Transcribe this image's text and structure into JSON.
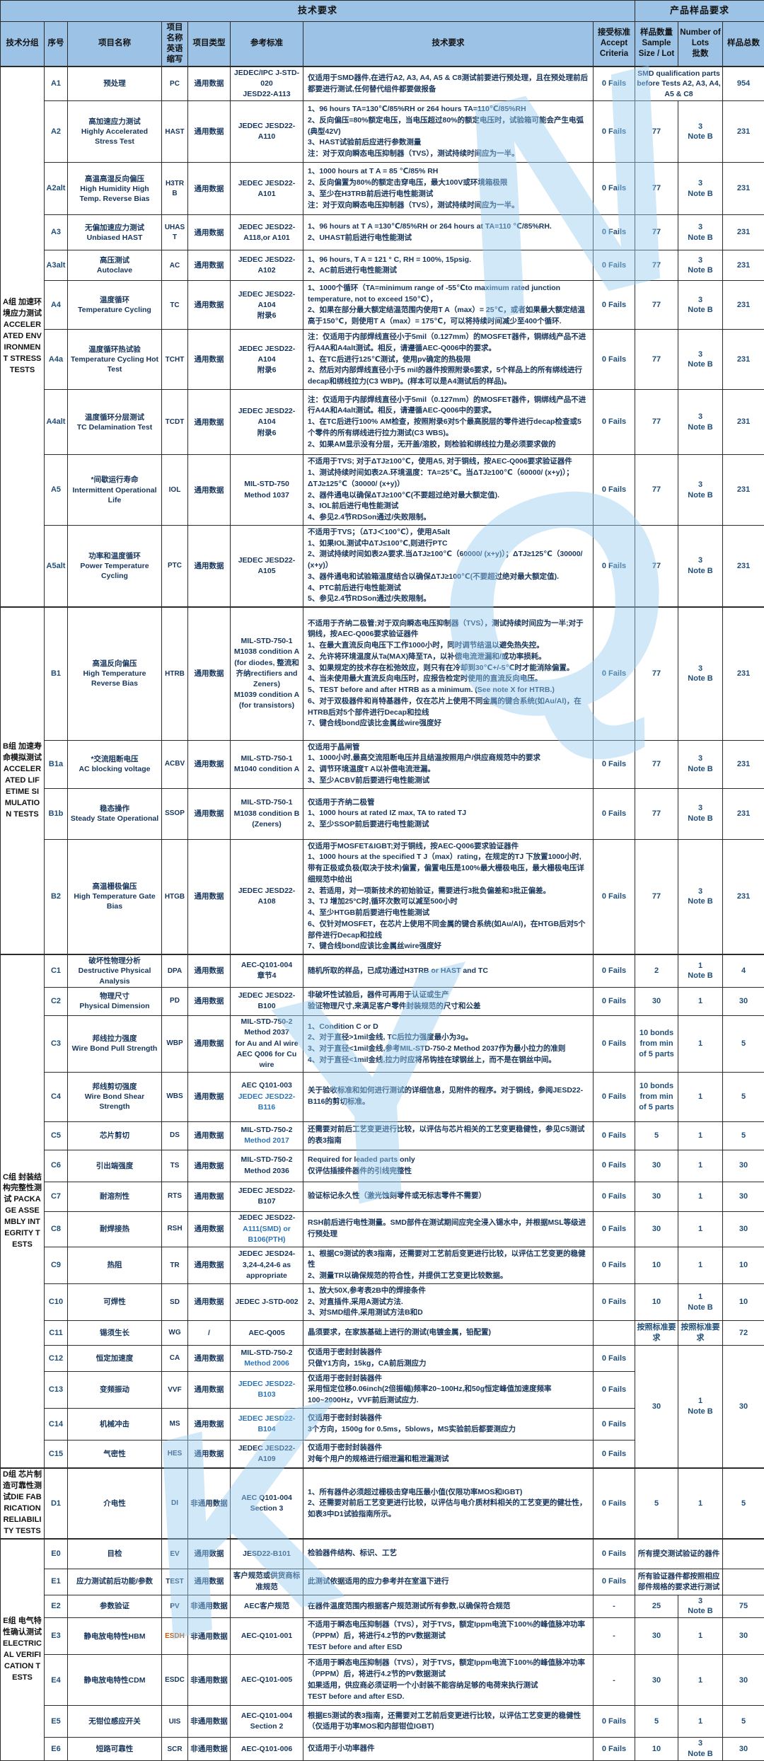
{
  "title_bar": {
    "tech_requirements": "技术要求",
    "product_sample_requirements": "产品样品要求"
  },
  "columns": [
    "技术分组",
    "序号",
    "项目名称",
    "项目名称英语缩写",
    "项目类型",
    "参考标准",
    "技术要求",
    "接受标准\nAccept\nCriteria",
    "样品数量\nSample\nSize / Lot",
    "Number of\nLots\n批数",
    "样品总数"
  ],
  "colors": {
    "header_bg": "#9CC3E6",
    "text": "#17365D",
    "number": "#1F4E79",
    "link_blue": "#2E75B6",
    "abbr_orange": "#C45911",
    "watermark": "#96CDF0"
  },
  "groups": [
    {
      "id": "A",
      "label": "A组 加速环境应力测试 ACCELERATED ENVIRONMENT STRESS TESTS",
      "rows": 10
    },
    {
      "id": "B",
      "label": "B组 加速寿命模拟测试 ACCELERATED LIFETIME SIMULATION TESTS",
      "rows": 4
    },
    {
      "id": "C",
      "label": "C组 封装结构完整性测试 PACKAGE ASSEMBLY INTEGRITY TESTS",
      "rows": 15
    },
    {
      "id": "D",
      "label": "D组 芯片制造可靠性测试DIE FABRICATION RELIABILITY TESTS",
      "rows": 1
    },
    {
      "id": "E",
      "label": "E组 电气特性确认测试 ELECTRICAL VERIFICATION TESTS",
      "rows": 7
    }
  ],
  "rows": [
    {
      "id": "A1",
      "name_zh": "预处理",
      "name_en": "",
      "abbr": "PC",
      "type": "通用数据",
      "ref": [
        {
          "t": "JEDEC/IPC J-STD-020"
        },
        {
          "t": "JESD22-A113"
        }
      ],
      "tech": [
        "仅适用于SMD器件,在进行A2, A3, A4, A5 & C8测试前要进行预处理，且在预处理前后都要进行测试,任何替代组件都要做报备"
      ],
      "accept": "0 Fails",
      "sample_wide": "SMD qualification parts before Tests A2, A3, A4, A5 & C8",
      "total": "954"
    },
    {
      "id": "A2",
      "name_zh": "高加速应力测试",
      "name_en": "Highly Accelerated Stress Test",
      "abbr": "HAST",
      "type": "通用数据",
      "ref": [
        {
          "t": "JEDEC JESD22-A110"
        }
      ],
      "tech": [
        "1、96  hours TA=130℃/85%RH or 264 hours TA=110℃/85%RH",
        "2、反向偏压=80%额定电压，当电压超过80%的额定电压时，试验箱可能会产生电弧(典型42V)",
        "3、HAST试验前后应进行参数测量",
        "注：对于双向瞬态电压抑制器（TVS），测试持续时间应为一半。"
      ],
      "accept": "0 Fails",
      "sample": "77",
      "lots": "3\nNote B",
      "total": "231"
    },
    {
      "id": "A2alt",
      "name_zh": "高温高湿反向偏压",
      "name_en": "High Humidity High Temp. Reverse Bias",
      "abbr": "H3TRB",
      "type": "通用数据",
      "ref": [
        {
          "t": "JEDEC JESD22-A101"
        }
      ],
      "tech": [
        "1、1000 hours at T A = 85 ℃/85% RH",
        "2、反向偏置为80%的额定击穿电压，最大100V或环境箱极限",
        "3、至少在H3TRB前后进行电性能测试",
        "注：对于双向瞬态电压抑制器（TVS），测试持续时间应为一半。"
      ],
      "accept": "0 Fails",
      "sample": "77",
      "lots": "3\nNote B",
      "total": "231"
    },
    {
      "id": "A3",
      "name_zh": "无偏加速应力测试",
      "name_en": "Unbiased HAST",
      "abbr": "UHAST",
      "type": "通用数据",
      "ref": [
        {
          "t": "JEDEC JESD22-A118,or A101"
        }
      ],
      "tech": [
        "1、96 hours at T A =130℃/85%RH or 264 hours at TA=110 ℃/85%RH.",
        "2、UHAST前后进行电性能测试"
      ],
      "accept": "0 Fails",
      "sample": "77",
      "lots": "3\nNote B",
      "total": "231"
    },
    {
      "id": "A3alt",
      "name_zh": "高压测试",
      "name_en": "Autoclave",
      "abbr": "AC",
      "type": "通用数据",
      "ref": [
        {
          "t": "JEDEC JESD22-A102"
        }
      ],
      "tech": [
        "1、96 hours, T A = 121 ° C, RH = 100%, 15psig.",
        "2、AC前后进行电性能测试"
      ],
      "accept": "0 Fails",
      "sample": "77",
      "lots": "3\nNote B",
      "total": "231"
    },
    {
      "id": "A4",
      "name_zh": "温度循环",
      "name_en": "Temperature Cycling",
      "abbr": "TC",
      "type": "通用数据",
      "ref": [
        {
          "t": "JEDEC JESD22-A104"
        },
        {
          "t": "附录6"
        }
      ],
      "tech": [
        "1、1000个循环（TA=minimum range of -55℃to maximum rated junction temperature, not to exceed 150℃），",
        "2、如果在部分最大额定结温范围内使用T A（max）= 25℃，或者如果最大额定结温高于150℃，则使用T A（max）= 175℃，可以将持续时间减少至400个循环."
      ],
      "accept": "0 Fails",
      "sample": "77",
      "lots": "3\nNote B",
      "total": "231"
    },
    {
      "id": "A4a",
      "name_zh": "温度循环热试验",
      "name_en": "Temperature Cycling Hot Test",
      "abbr": "TCHT",
      "type": "通用数据",
      "ref": [
        {
          "t": "JEDEC JESD22-A104"
        },
        {
          "t": "附录6"
        }
      ],
      "tech": [
        "注：仅适用于内部焊线直径小于5mil（0.127mm）的MOSFET器件，铜绑线产品不进行A4A和A4alt测试。相反，请遵循AEC-Q006中的要求。",
        "1、在TC后进行125℃测试，使用pv确定的热极限",
        "2、然后对内部焊线直径小于5 mil的器件按照附录6要求，5个样品上的所有绑线进行decap和绑线拉力(C3 WBP)。(样本可以是A4测试后的样品)。"
      ],
      "accept": "0 Fails",
      "sample": "77",
      "lots": "3\nNote B",
      "total": "231"
    },
    {
      "id": "A4alt",
      "name_zh": "温度循环分层测试",
      "name_en": "TC Delamination Test",
      "abbr": "TCDT",
      "type": "通用数据",
      "ref": [
        {
          "t": "JEDEC JESD22-A104"
        },
        {
          "t": "附录6"
        }
      ],
      "tech": [
        "注：仅适用于内部焊线直径小于5mil（0.127mm）的MOSFET器件，铜绑线产品不进行A4A和A4alt测试。相反，请遵循AEC-Q006中的要求。",
        "1、在TC后进行100% AM检查，按照附录6对5个最高脱层的零件进行decap检查或5个零件的所有绑线进行拉力测试(C3 WBS)。",
        "2、如果AM显示没有分层，无开盖/溶胶，则检验和绑线拉力是必须要求做的"
      ],
      "accept": "0 Fails",
      "sample": "77",
      "lots": "3\nNote B",
      "total": "231"
    },
    {
      "id": "A5",
      "name_zh": "*间歇运行寿命",
      "name_en": "Intermittent Operational Life",
      "abbr": "IOL",
      "type": "通用数据",
      "ref": [
        {
          "t": "MIL-STD-750"
        },
        {
          "t": "Method 1037"
        }
      ],
      "tech": [
        "不适用于TVS; 对于ΔTJ≥100℃，使用A5, 对于铜线，按AEC-Q006要求验证器件",
        "1、测试持续时间如表2A.环境温度：TA=25℃。当ΔTJ≥100℃（60000/ (x+y)）；ΔTJ≥125℃（30000/ (x+y)）",
        "2、器件通电以确保ΔTJ≥100℃(不要超过绝对最大额定值).",
        "3、IOL前后进行电性能测试",
        "4、参见2.4节RDSon通过/失败限制。"
      ],
      "accept": "0 Fails",
      "sample": "77",
      "lots": "3\nNote B",
      "total": "231"
    },
    {
      "id": "A5alt",
      "name_zh": "功率和温度循环",
      "name_en": "Power Temperature Cycling",
      "abbr": "PTC",
      "type": "通用数据",
      "ref": [
        {
          "t": "JEDEC JESD22-A105"
        }
      ],
      "tech": [
        "不适用于TVS；（ΔTJ＜100℃），使用A5alt",
        "1、如果IOL测试中ΔTJ≤100℃,则进行PTC",
        "2、测试持续时间如表2A要求.当ΔTJ≥100℃（60000/ (x+y)）；ΔTJ≥125℃（30000/ (x+y)）",
        "3、器件通电和试验箱温度结合以确保ΔTJ≥100℃(不要超过绝对最大额定值).",
        "4、PTC前后进行电性能测试",
        "5、参见2.4节RDSon通过/失败限制。"
      ],
      "accept": "0 Fails",
      "sample": "77",
      "lots": "3\nNote B",
      "total": "231"
    },
    {
      "id": "B1",
      "name_zh": "高温反向偏压",
      "name_en": "High Temperature Reverse Bias",
      "abbr": "HTRB",
      "type": "通用数据",
      "ref": [
        {
          "t": "MIL-STD-750-1"
        },
        {
          "t": "M1038 condition A"
        },
        {
          "t": "(for diodes, 整流和齐纳rectifiers and Zeners)"
        },
        {
          "t": "M1039 condition A"
        },
        {
          "t": "(for transistors)"
        }
      ],
      "tech": [
        "不适用于齐纳二极管;对于双向瞬态电压抑制器（TVS），测试持续时间应为一半;对于铜线，按AEC-Q006要求验证器件",
        "1、在最大直流反向电压下工作1000小时，同时调节结温以避免热失控。",
        "2、允许将环境温度从Ta(MAX)降至TA，以补偿电流泄漏和/或功率损耗。",
        "3、如果规定的技术存在松弛效应，则只有在冷却到30℃+/-5℃时才能消除偏置。",
        "4、当未使用最大直流反向电压时，应报告检定时使用的直流反向电压。",
        "5、TEST before and after HTRB as a minimum. (See note X for HTRB.)",
        "6、对于双极器件和肖特基器件，仅在芯片上使用不同金属的键合系统(如Au/Al)，在HTRB后对5个部件进行Decap和拉线",
        "7、键合线bond应该比金属丝wire强度好"
      ],
      "accept": "0 Fails",
      "sample": "77",
      "lots": "3\nNote B",
      "total": "231"
    },
    {
      "id": "B1a",
      "name_zh": "*交流阻断电压",
      "name_en": "AC blocking voltage",
      "abbr": "ACBV",
      "type": "通用数据",
      "ref": [
        {
          "t": "MIL-STD-750-1"
        },
        {
          "t": "M1040 condition A"
        }
      ],
      "tech": [
        "仅适用于晶闸管",
        "1、1000小时,最高交流阻断电压并且结温按照用户/供应商规范中的要求",
        "2、调节环境温度T A以补偿电流泄漏。",
        "3、至少ACBV前后要进行电性能测试"
      ],
      "accept": "0 Fails",
      "sample": "77",
      "lots": "3\nNote B",
      "total": "231"
    },
    {
      "id": "B1b",
      "name_zh": "稳态操作",
      "name_en": "Steady State Operational",
      "abbr": "SSOP",
      "type": "通用数据",
      "ref": [
        {
          "t": "MIL-STD-750-1"
        },
        {
          "t": "M1038 condition B"
        },
        {
          "t": "(Zeners)"
        }
      ],
      "tech": [
        "仅适用于齐纳二极管",
        "1、1000 hours at rated IZ max, TA to rated TJ",
        "2、至少SSOP前后要进行电性能测试"
      ],
      "accept": "0 Fails",
      "sample": "77",
      "lots": "3\nNote B",
      "total": "231"
    },
    {
      "id": "B2",
      "name_zh": "高温栅极偏压",
      "name_en": "High Temperature Gate Bias",
      "abbr": "HTGB",
      "type": "通用数据",
      "ref": [
        {
          "t": "JEDEC JESD22-A108"
        }
      ],
      "tech": [
        "仅适用于MOSFET&IGBT;对于铜线，按AEC-Q006要求验证器件",
        "1、1000 hours at the specified T J（max）rating，在规定的TJ 下放置1000小时,带有正极或负极(取决于技术)偏置，偏置电压是100%最大栅极电压，最大栅极电压详细规范中给出",
        "2、若适用，对一项新技术的初始验证，需要进行3批负偏差和3批正偏差。",
        "3、TJ 增加25°C时,循环次数可以减至500小时",
        "4、至少HTGB前后要进行电性能测试",
        "6、仅针对MOSFET，在芯片上使用不同金属的键合系统(如Au/Al)，在HTGB后对5个部件进行Decap和拉线",
        "7、键合线bond应该比金属丝wire强度好"
      ],
      "accept": "0 Fails",
      "sample": "77",
      "lots": "3\nNote B",
      "total": "231"
    },
    {
      "id": "C1",
      "name_zh": "破坏性物理分析",
      "name_en": "Destructive Physical Analysis",
      "abbr": "DPA",
      "type": "通用数据",
      "ref": [
        {
          "t": "AEC-Q101-004"
        },
        {
          "t": "章节4"
        }
      ],
      "tech": [
        "随机所取的样品，已成功通过H3TRB or HAST and TC"
      ],
      "accept": "0 Fails",
      "sample": "2",
      "lots": "1\nNote B",
      "total": "4"
    },
    {
      "id": "C2",
      "name_zh": "物理尺寸",
      "name_en": "Physical Dimension",
      "abbr": "PD",
      "type": "通用数据",
      "ref": [
        {
          "t": "JEDEC JESD22-B100"
        }
      ],
      "tech": [
        "非破坏性试验后，器件可再用于认证或生产",
        "验证物理尺寸,来满足客户零件封装规范的尺寸和公差"
      ],
      "accept": "0 Fails",
      "sample": "30",
      "lots": "1",
      "total": "30"
    },
    {
      "id": "C3",
      "name_zh": "邦线拉力强度",
      "name_en": "Wire Bond Pull Strength",
      "abbr": "WBP",
      "type": "通用数据",
      "ref": [
        {
          "t": "MIL-STD-750-2"
        },
        {
          "t": "Method 2037"
        },
        {
          "t": "for Au and Al wire"
        },
        {
          "t": "AEC Q006 for Cu wire"
        }
      ],
      "tech": [
        "1、Condition C or D",
        "2、对于直径>1mil金线, TC后拉力强度最小为3g。",
        "3、对于直径<1mil金线,参考MIL-STD-750-2 Method 2037作为最小拉力的准则",
        "4、对于直径<1mil金线,拉力时应将吊钩挂在球钢丝上，而不是在钢丝中间。"
      ],
      "accept": "0 Fails",
      "sample": "10 bonds from min of 5 parts",
      "lots": "1",
      "total": "5"
    },
    {
      "id": "C4",
      "name_zh": "邦线剪切强度",
      "name_en": "Wire Bond Shear Strength",
      "abbr": "WBS",
      "type": "通用数据",
      "ref": [
        {
          "t": "AEC Q101-003"
        },
        {
          "t": "JEDEC JESD22-B116",
          "blue": true
        }
      ],
      "tech": [
        "关于验收标准和如何进行测试的详细信息，见附件的程序。对于铜线，参阅JESD22-B116的剪切标准。"
      ],
      "accept": "0 Fails",
      "sample": "10 bonds from min of 5 parts",
      "lots": "1",
      "total": "5"
    },
    {
      "id": "C5",
      "name_zh": "芯片剪切",
      "name_en": "",
      "abbr": "DS",
      "type": "通用数据",
      "ref": [
        {
          "t": "MIL-STD-750-2"
        },
        {
          "t": "Method 2017",
          "blue": true
        }
      ],
      "tech": [
        "还需要对前后工艺变更进行比较，以评估与芯片相关的工艺变更稳健性，参见C5测试的表3指南"
      ],
      "accept": "0 Fails",
      "sample": "5",
      "lots": "1",
      "total": "5"
    },
    {
      "id": "C6",
      "name_zh": "引出端强度",
      "name_en": "",
      "abbr": "TS",
      "type": "通用数据",
      "ref": [
        {
          "t": "MIL-STD-750-2"
        },
        {
          "t": "Method 2036"
        }
      ],
      "tech": [
        "Required for leaded parts only",
        "仅评估插接件器件的引线完整性"
      ],
      "accept": "0 Fails",
      "sample": "30",
      "lots": "1",
      "total": "30"
    },
    {
      "id": "C7",
      "name_zh": "耐溶剂性",
      "name_en": "",
      "abbr": "RTS",
      "type": "通用数据",
      "ref": [
        {
          "t": "JEDEC JESD22-B107"
        }
      ],
      "tech": [
        "验证标记永久性（激光蚀刻零件或无标志零件不需要）"
      ],
      "accept": "0 Fails",
      "sample": "30",
      "lots": "1",
      "total": "30"
    },
    {
      "id": "C8",
      "name_zh": "耐焊接热",
      "name_en": "",
      "abbr": "RSH",
      "type": "通用数据",
      "ref": [
        {
          "t": "JEDEC JESD22-"
        },
        {
          "t": "A111(SMD) or B106(PTH)",
          "blue": true
        }
      ],
      "tech": [
        "RSH前后进行电性测量。SMD部件在测试期间应完全浸入锡水中，并根据MSL等级进行预处理"
      ],
      "accept": "0 Fails",
      "sample": "30",
      "lots": "1",
      "total": "30"
    },
    {
      "id": "C9",
      "name_zh": "热阻",
      "name_en": "",
      "abbr": "TR",
      "type": "通用数据",
      "ref": [
        {
          "t": "JEDEC JESD24-3,24-4,24-6 as appropriate"
        }
      ],
      "tech": [
        "1、根据C9测试的表3指南，还需要对工艺前后变更进行比较，以评估工艺变更的稳健性",
        "2、测量TR以确保规范的符合性，并提供工艺变更比较数据。"
      ],
      "accept": "0 Fails",
      "sample": "10",
      "lots": "1",
      "total": "10"
    },
    {
      "id": "C10",
      "name_zh": "可焊性",
      "name_en": "",
      "abbr": "SD",
      "type": "通用数据",
      "ref": [
        {
          "t": "JEDEC J-STD-002"
        }
      ],
      "tech": [
        "1、放大50X,参考表2B中的焊接条件",
        "2、对直插件,采用A测试方法.",
        "3、对SMD组件,采用测试方法B和D"
      ],
      "accept": "0 Fails",
      "sample": "10",
      "lots": "1\nNote B",
      "total": "10"
    },
    {
      "id": "C11",
      "name_zh": "锡须生长",
      "name_en": "",
      "abbr": "WG",
      "type": "/",
      "ref": [
        {
          "t": "AEC-Q005"
        }
      ],
      "tech": [
        "晶须要求，在家族基础上进行的测试(电镀金属，铅配置)"
      ],
      "accept": "",
      "sample": "按照标准要求",
      "lots": "按照标准要求",
      "total": "72"
    },
    {
      "id": "C12",
      "name_zh": "恒定加速度",
      "name_en": "",
      "abbr": "CA",
      "type": "通用数据",
      "ref": [
        {
          "t": "MIL-STD-750-2"
        },
        {
          "t": "Method 2006",
          "blue": true
        }
      ],
      "tech": [
        "仅适用于密封封装器件",
        "只做Y1方向，15kg，CA前后测应力"
      ],
      "accept": "0 Fails",
      "sample": "30",
      "lots": "1\nNote B",
      "total": "30",
      "merge_down": 4
    },
    {
      "id": "C13",
      "name_zh": "变频振动",
      "name_en": "",
      "abbr": "VVF",
      "type": "通用数据",
      "ref": [
        {
          "t": "JEDEC JESD22-",
          "blue": true
        },
        {
          "t": "B103",
          "blue": true
        }
      ],
      "tech": [
        "仅适用于密封封装器件",
        "采用恒定位移0.06inch(2倍振幅)频率20~100Hz,和50g恒定峰值加速度频率100~2000Hz，VVF前后测试应力."
      ],
      "accept": "0 Fails",
      "in_merge": true
    },
    {
      "id": "C14",
      "name_zh": "机械冲击",
      "name_en": "",
      "abbr": "MS",
      "type": "通用数据",
      "ref": [
        {
          "t": "JEDEC JESD22-",
          "blue": true
        },
        {
          "t": "B104",
          "blue": true
        }
      ],
      "tech": [
        "仅适用于密封封装器件",
        "3个方向，1500g for 0.5ms，5blows，MS实验前后都要测应力"
      ],
      "accept": "0 Fails",
      "in_merge": true
    },
    {
      "id": "C15",
      "name_zh": "气密性",
      "name_en": "",
      "abbr": "HES",
      "type": "通用数据",
      "ref": [
        {
          "t": "JEDEC JESD22-A109"
        }
      ],
      "tech": [
        "仅适用于密封封装器件",
        "对每个用户的规格进行细泄漏和粗泄漏测试"
      ],
      "accept": "0 Fails",
      "in_merge": true
    },
    {
      "id": "D1",
      "name_zh": "介电性",
      "name_en": "",
      "abbr": "DI",
      "type": "非通用数据",
      "ref": [
        {
          "t": "AEC Q101-004"
        },
        {
          "t": "Section 3"
        }
      ],
      "tech": [
        "1、所有器件必须超过栅极击穿电压最小值(仅限功率MOS和IGBT)",
        "2、还需要对前后工艺变更进行比较，以评估与电介质材料相关的工艺变更的健壮性，如表3中D1试验指南所示。"
      ],
      "accept": "0 Fails",
      "sample": "5",
      "lots": "1",
      "total": "5"
    },
    {
      "id": "E0",
      "name_zh": "目检",
      "name_en": "",
      "abbr": "EV",
      "type": "通用数据",
      "ref": [
        {
          "t": "JESD22-B101"
        }
      ],
      "tech": [
        "检验器件结构、标识、工艺"
      ],
      "accept": "0 Fails",
      "sample_wide": "所有提交测试验证的器件",
      "total": ""
    },
    {
      "id": "E1",
      "name_zh": "应力测试前后功能/参数",
      "name_en": "",
      "abbr": "TEST",
      "type": "通用数据",
      "ref": [
        {
          "t": "客户规范或供货商标准规范"
        }
      ],
      "tech": [
        "此测试依据适用的应力参考并在室温下进行"
      ],
      "accept": "0 Fails",
      "sample_wide": "所有验证器件都按照相应部件规格的要求进行测试",
      "total": ""
    },
    {
      "id": "E2",
      "name_zh": "参数验证",
      "name_en": "",
      "abbr": "PV",
      "type": "非通用数据",
      "ref": [
        {
          "t": "AEC客户规范"
        }
      ],
      "tech": [
        "在器件温度范围内根据客户规范测试所有参数,以确保符合规范"
      ],
      "accept": "-",
      "sample": "25",
      "lots": "3\nNote B",
      "total": "75"
    },
    {
      "id": "E3",
      "name_zh": "静电放电特性HBM",
      "name_en": "",
      "abbr": "ESDH",
      "abbr_orange": true,
      "type": "非通用数据",
      "ref": [
        {
          "t": "AEC-Q101-001"
        }
      ],
      "tech": [
        "不适用于瞬态电压抑制器（TVS），对于TVS，额定Ippm电流下100%的峰值脉冲功率（PPPM）后，将进行4.2节的PV数据测试",
        "TEST before and after ESD"
      ],
      "accept": "-",
      "sample": "30",
      "lots": "1",
      "total": "30"
    },
    {
      "id": "E4",
      "name_zh": "静电放电特性CDM",
      "name_en": "",
      "abbr": "ESDC",
      "type": "非通用数据",
      "ref": [
        {
          "t": "AEC-Q101-005"
        }
      ],
      "tech": [
        "不适用于瞬态电压抑制器（TVS），对于TVS，额定Ippm电流下100%的峰值脉冲功率（PPPM）后，将进行4.2节的PV数据测试",
        "如果适用，供应商必须证明一个小封装不能容纳足够的电荷来执行测试",
        "TEST before and after ESD."
      ],
      "accept": "-",
      "sample": "30",
      "lots": "1",
      "total": "30"
    },
    {
      "id": "E5",
      "name_zh": "无钳位感应开关",
      "name_en": "",
      "abbr": "UIS",
      "type": "非通用数据",
      "ref": [
        {
          "t": "AEC-Q101-004"
        },
        {
          "t": "Section 2"
        }
      ],
      "tech": [
        "根据E5测试的表3指南，还需要对工艺前后变更进行比较，以评估工艺变更的稳健性（仅适用于功率MOS和内部钳位IGBT)"
      ],
      "accept": "0 Fails",
      "sample": "5",
      "lots": "1",
      "total": "5"
    },
    {
      "id": "E6",
      "name_zh": "短路可靠性",
      "name_en": "",
      "abbr": "SCR",
      "type": "非通用数据",
      "ref": [
        {
          "t": "AEC-Q101-006"
        }
      ],
      "tech": [
        "仅适用于小功率器件"
      ],
      "accept": "0 Fails",
      "sample": "10",
      "lots": "3\nNote B",
      "total": "30"
    }
  ]
}
